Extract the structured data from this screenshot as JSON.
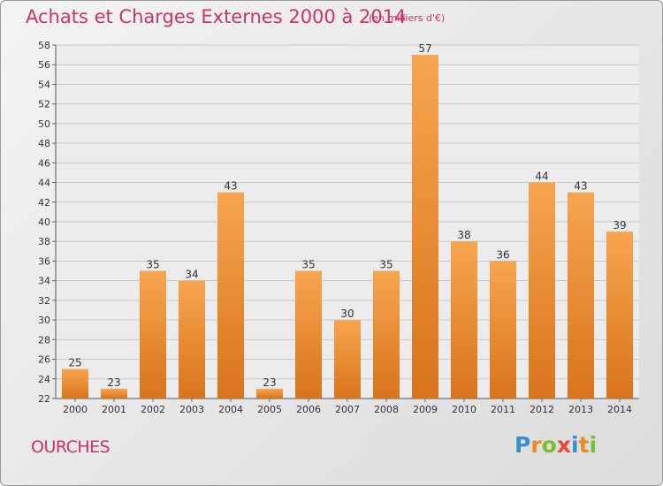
{
  "title": "Achats et Charges Externes 2000 à 2014",
  "subtitle": "(en milliers d'€)",
  "commune": "OURCHES",
  "logo": {
    "text": "Proxiti",
    "letters": [
      {
        "ch": "P",
        "color": "#3a8fd0"
      },
      {
        "ch": "r",
        "color": "#f08a1c"
      },
      {
        "ch": "o",
        "color": "#7cbf2e"
      },
      {
        "ch": "x",
        "color": "#e8473c"
      },
      {
        "ch": "i",
        "color": "#3a8fd0"
      },
      {
        "ch": "t",
        "color": "#f08a1c"
      },
      {
        "ch": "i",
        "color": "#7cbf2e"
      }
    ]
  },
  "colors": {
    "title": "#cc3366",
    "bar_light": "#f7a54f",
    "bar_dark": "#d9741c",
    "grid": "#c8c8c8"
  },
  "chart_data": {
    "type": "bar",
    "categories": [
      "2000",
      "2001",
      "2002",
      "2003",
      "2004",
      "2005",
      "2006",
      "2007",
      "2008",
      "2009",
      "2010",
      "2011",
      "2012",
      "2013",
      "2014"
    ],
    "values": [
      25,
      23,
      35,
      34,
      43,
      23,
      35,
      30,
      35,
      57,
      38,
      36,
      44,
      43,
      39
    ],
    "ylim": [
      22,
      58
    ],
    "yticks": [
      22,
      24,
      26,
      28,
      30,
      32,
      34,
      36,
      38,
      40,
      42,
      44,
      46,
      48,
      50,
      52,
      54,
      56,
      58
    ],
    "grid": true
  }
}
